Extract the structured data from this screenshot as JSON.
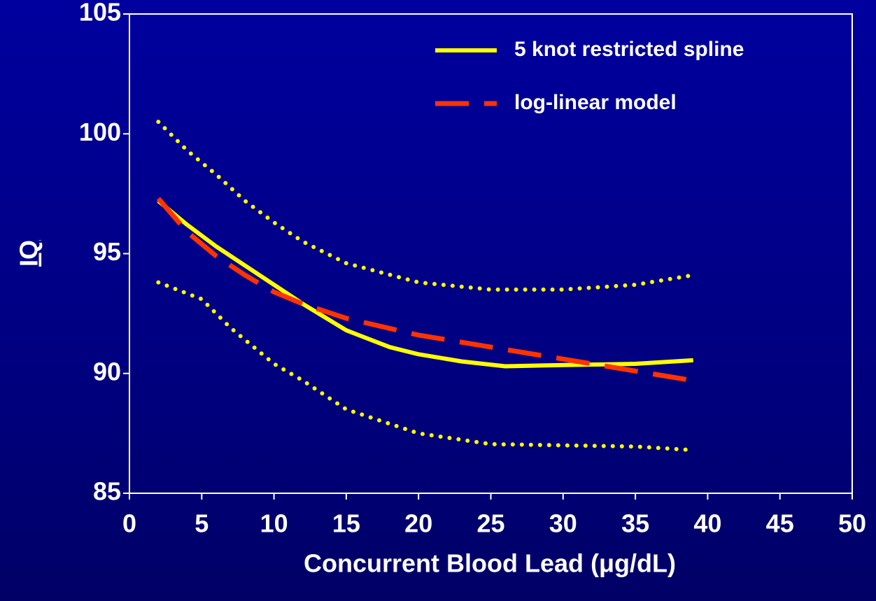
{
  "chart_data": {
    "type": "line",
    "xlabel": "Concurrent Blood Lead (μg/dL)",
    "ylabel": "IQ",
    "xlim": [
      0,
      50
    ],
    "xticks": [
      0,
      5,
      10,
      15,
      20,
      25,
      30,
      35,
      40,
      45,
      50
    ],
    "ylim": [
      85,
      105
    ],
    "yticks": [
      85,
      90,
      95,
      100,
      105
    ],
    "grid": false,
    "legend": "upper right",
    "series": [
      {
        "name": "5 knot restricted spline",
        "color": "#ffff00",
        "style": "solid",
        "x": [
          2,
          4,
          6,
          8,
          10,
          12,
          15,
          18,
          20,
          23,
          26,
          30,
          35,
          39
        ],
        "values": [
          97.2,
          96.2,
          95.3,
          94.5,
          93.7,
          92.9,
          91.8,
          91.1,
          90.8,
          90.5,
          90.3,
          90.35,
          90.4,
          90.55
        ]
      },
      {
        "name": "log-linear model",
        "color": "#ff3300",
        "style": "dashed",
        "x": [
          2,
          4,
          6,
          8,
          10,
          12,
          15,
          20,
          25,
          30,
          35,
          39
        ],
        "values": [
          97.3,
          95.9,
          94.9,
          94.1,
          93.4,
          92.9,
          92.3,
          91.6,
          91.1,
          90.6,
          90.1,
          89.7
        ]
      },
      {
        "color": "#ffff00",
        "style": "dotted",
        "x": [
          2,
          4,
          6,
          8,
          10,
          12,
          15,
          20,
          25,
          30,
          35,
          39
        ],
        "values": [
          100.5,
          99.3,
          98.3,
          97.2,
          96.3,
          95.5,
          94.6,
          93.8,
          93.5,
          93.5,
          93.7,
          94.1
        ]
      },
      {
        "color": "#ffff00",
        "style": "dotted",
        "x": [
          2,
          5,
          7,
          10,
          12,
          15,
          20,
          25,
          30,
          35,
          39
        ],
        "values": [
          93.8,
          93.1,
          91.9,
          90.4,
          89.7,
          88.5,
          87.5,
          87.05,
          87.0,
          86.95,
          86.8
        ]
      }
    ]
  }
}
